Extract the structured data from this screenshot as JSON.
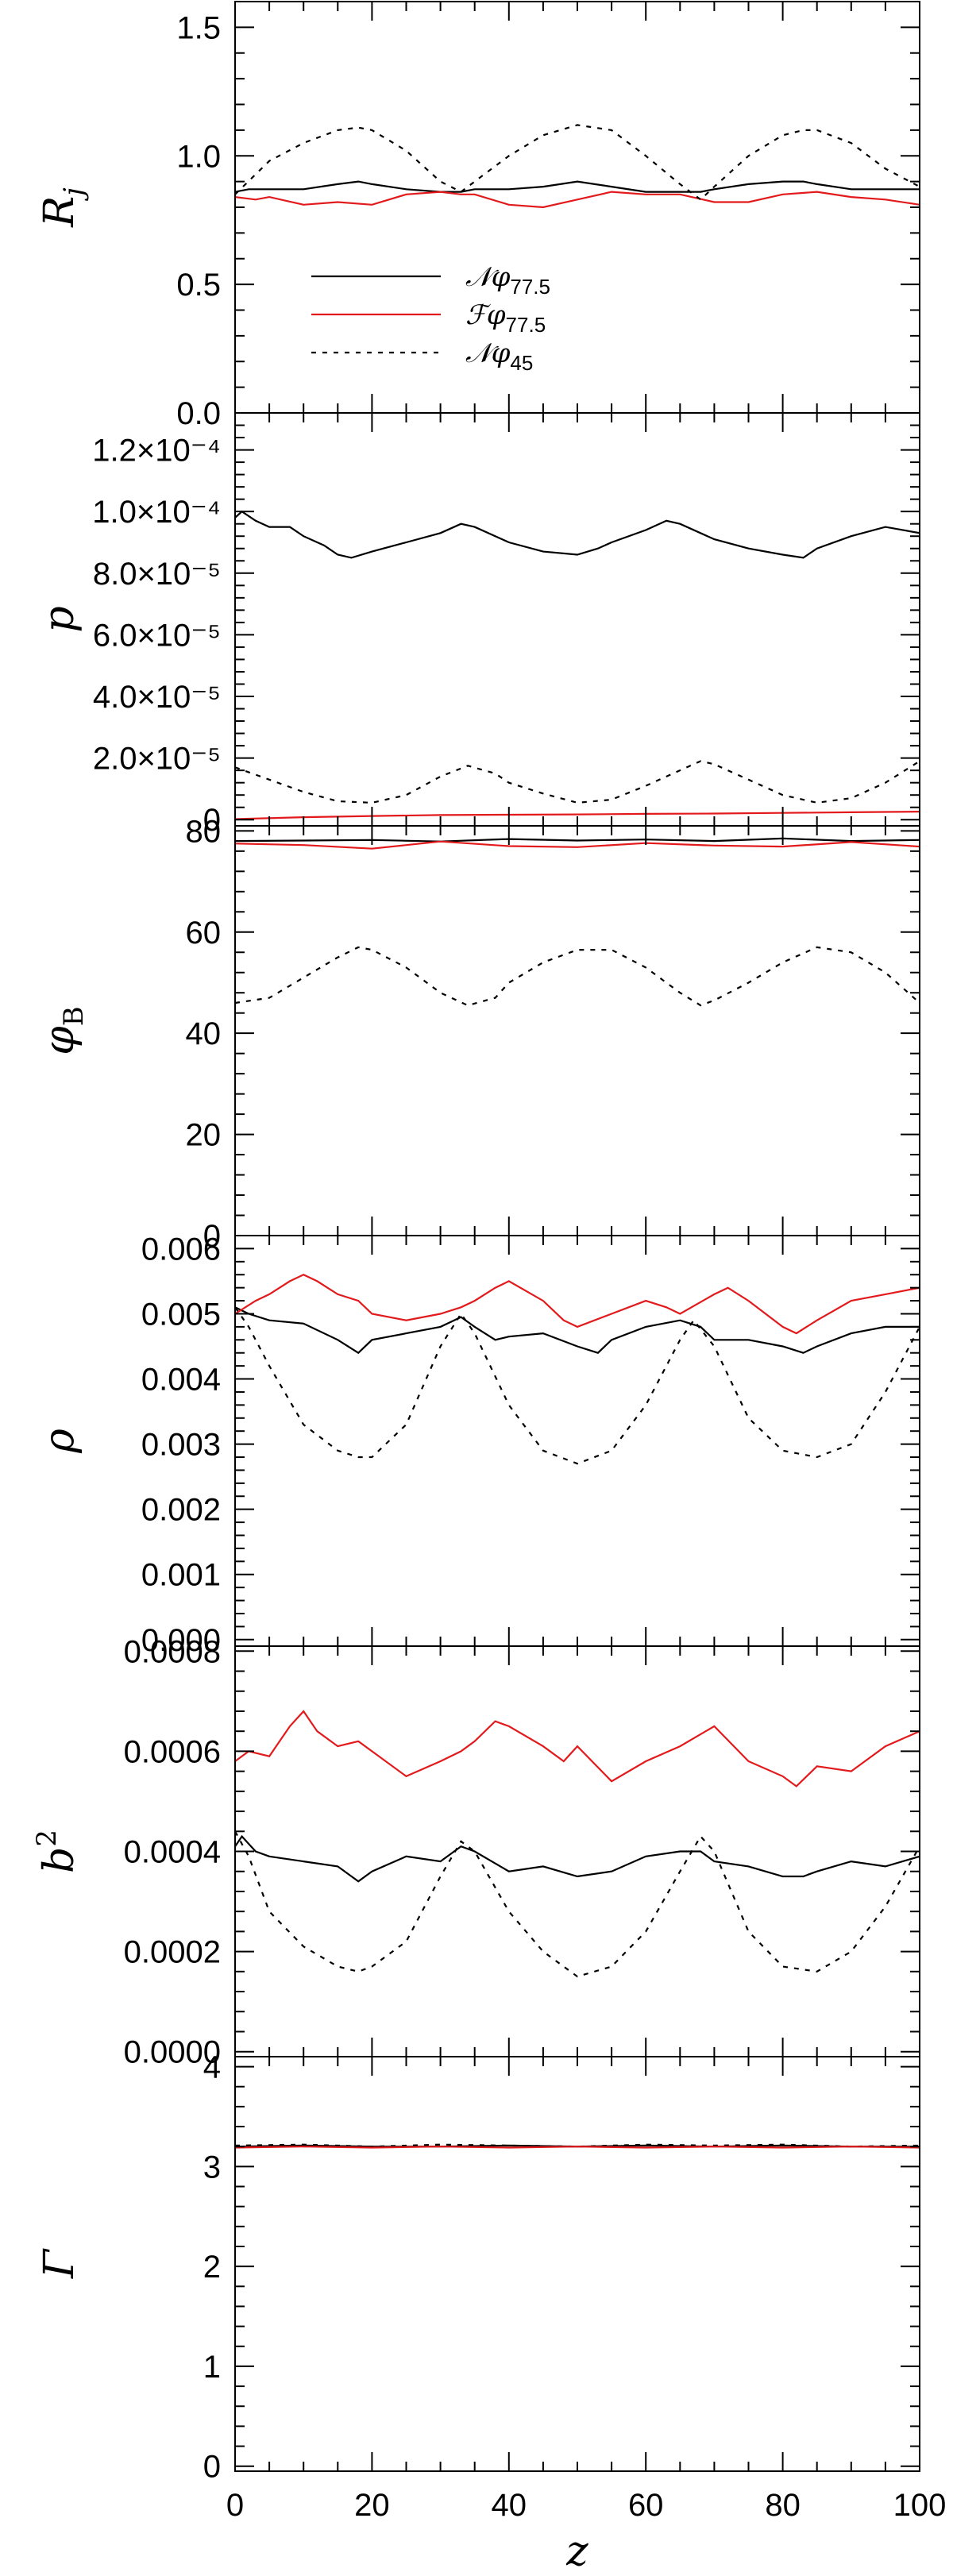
{
  "chart_data": [
    {
      "type": "line",
      "panel": "Rj",
      "ylabel": "R",
      "ylabel_sub": "j",
      "xlim": [
        0,
        100
      ],
      "ylim": [
        0,
        1.6
      ],
      "yticks": [
        0.0,
        0.5,
        1.0,
        1.5
      ],
      "ytick_labels": [
        "0.0",
        "0.5",
        "1.0",
        "1.5"
      ],
      "legend": {
        "placement": "lower-left",
        "entries": [
          {
            "text": "𝒩φ",
            "sub": "77.5",
            "color": "#000000",
            "dash": "solid"
          },
          {
            "text": "ℱφ",
            "sub": "77.5",
            "color": "#e31a1c",
            "dash": "solid"
          },
          {
            "text": "𝒩φ",
            "sub": "45",
            "color": "#000000",
            "dash": "dotted"
          }
        ]
      },
      "series": [
        {
          "color": "#000000",
          "dash": "solid",
          "x": [
            0,
            2,
            5,
            10,
            15,
            18,
            20,
            25,
            30,
            33,
            35,
            40,
            45,
            50,
            55,
            60,
            65,
            68,
            70,
            75,
            80,
            83,
            85,
            90,
            95,
            100
          ],
          "y": [
            0.86,
            0.87,
            0.87,
            0.87,
            0.89,
            0.9,
            0.89,
            0.87,
            0.86,
            0.86,
            0.87,
            0.87,
            0.88,
            0.9,
            0.88,
            0.86,
            0.86,
            0.86,
            0.87,
            0.89,
            0.9,
            0.9,
            0.89,
            0.87,
            0.87,
            0.87
          ]
        },
        {
          "color": "#e31a1c",
          "dash": "solid",
          "x": [
            0,
            3,
            5,
            10,
            15,
            20,
            25,
            30,
            33,
            35,
            40,
            45,
            50,
            55,
            60,
            65,
            70,
            75,
            80,
            85,
            90,
            95,
            100
          ],
          "y": [
            0.84,
            0.83,
            0.84,
            0.81,
            0.82,
            0.81,
            0.85,
            0.86,
            0.85,
            0.85,
            0.81,
            0.8,
            0.83,
            0.86,
            0.85,
            0.85,
            0.82,
            0.82,
            0.85,
            0.86,
            0.84,
            0.83,
            0.81
          ]
        },
        {
          "color": "#000000",
          "dash": "dotted",
          "x": [
            0,
            5,
            10,
            15,
            18,
            20,
            25,
            30,
            33,
            35,
            40,
            45,
            50,
            55,
            60,
            65,
            68,
            70,
            75,
            80,
            83,
            85,
            90,
            95,
            100
          ],
          "y": [
            0.85,
            0.98,
            1.05,
            1.1,
            1.11,
            1.1,
            1.02,
            0.9,
            0.86,
            0.9,
            1.0,
            1.08,
            1.12,
            1.1,
            1.0,
            0.89,
            0.83,
            0.88,
            1.0,
            1.08,
            1.1,
            1.1,
            1.05,
            0.95,
            0.88
          ]
        }
      ]
    },
    {
      "type": "line",
      "panel": "p",
      "ylabel": "p",
      "xlim": [
        0,
        100
      ],
      "ylim": [
        -2e-06,
        0.000132
      ],
      "yticks": [
        0,
        2e-05,
        4e-05,
        6e-05,
        8e-05,
        0.0001,
        0.00012
      ],
      "ytick_labels": [
        "0",
        "2.0×10⁻⁵",
        "4.0×10⁻⁵",
        "6.0×10⁻⁵",
        "8.0×10⁻⁵",
        "1.0×10⁻⁴",
        "1.2×10⁻⁴"
      ],
      "series": [
        {
          "color": "#000000",
          "dash": "solid",
          "x": [
            0,
            1,
            3,
            5,
            8,
            10,
            13,
            15,
            17,
            20,
            25,
            30,
            33,
            35,
            40,
            45,
            50,
            53,
            55,
            60,
            63,
            65,
            70,
            75,
            80,
            83,
            85,
            90,
            95,
            100
          ],
          "y": [
            9.8e-05,
            0.0001,
            9.7e-05,
            9.5e-05,
            9.5e-05,
            9.2e-05,
            8.9e-05,
            8.6e-05,
            8.5e-05,
            8.7e-05,
            9e-05,
            9.3e-05,
            9.6e-05,
            9.5e-05,
            9e-05,
            8.7e-05,
            8.6e-05,
            8.8e-05,
            9e-05,
            9.4e-05,
            9.7e-05,
            9.6e-05,
            9.1e-05,
            8.8e-05,
            8.6e-05,
            8.5e-05,
            8.8e-05,
            9.2e-05,
            9.5e-05,
            9.3e-05
          ]
        },
        {
          "color": "#e31a1c",
          "dash": "solid",
          "x": [
            0,
            10,
            20,
            30,
            40,
            50,
            60,
            70,
            80,
            90,
            100
          ],
          "y": [
            2e-07,
            8e-07,
            1.2e-06,
            1.5e-06,
            1.6e-06,
            1.7e-06,
            1.9e-06,
            2e-06,
            2.2e-06,
            2.4e-06,
            2.6e-06
          ]
        },
        {
          "color": "#000000",
          "dash": "dotted",
          "x": [
            0,
            5,
            10,
            15,
            20,
            25,
            30,
            34,
            38,
            40,
            45,
            50,
            55,
            60,
            65,
            68,
            70,
            75,
            80,
            85,
            90,
            95,
            100
          ],
          "y": [
            1.7e-05,
            1.3e-05,
            9e-06,
            6e-06,
            5.5e-06,
            8e-06,
            1.4e-05,
            1.75e-05,
            1.5e-05,
            1.2e-05,
            8.5e-06,
            5.5e-06,
            6.5e-06,
            1.1e-05,
            1.6e-05,
            1.9e-05,
            1.8e-05,
            1.3e-05,
            8e-06,
            5.5e-06,
            7e-06,
            1.2e-05,
            1.9e-05
          ]
        }
      ]
    },
    {
      "type": "line",
      "panel": "phiB",
      "ylabel": "φ",
      "ylabel_sub": "B",
      "xlim": [
        0,
        100
      ],
      "ylim": [
        0,
        81
      ],
      "yticks": [
        0,
        20,
        40,
        60,
        80
      ],
      "ytick_labels": [
        "0",
        "20",
        "40",
        "60",
        "80"
      ],
      "series": [
        {
          "color": "#000000",
          "dash": "solid",
          "x": [
            0,
            10,
            20,
            30,
            40,
            50,
            60,
            70,
            80,
            90,
            100
          ],
          "y": [
            78.0,
            78.1,
            78.2,
            77.9,
            78.4,
            78.1,
            78.3,
            78.0,
            78.5,
            78.0,
            78.2
          ]
        },
        {
          "color": "#e31a1c",
          "dash": "solid",
          "x": [
            0,
            10,
            20,
            30,
            40,
            50,
            60,
            70,
            80,
            90,
            100
          ],
          "y": [
            77.5,
            77.2,
            76.5,
            77.9,
            77.0,
            76.8,
            77.6,
            77.1,
            76.9,
            77.8,
            76.9
          ]
        },
        {
          "color": "#000000",
          "dash": "dotted",
          "x": [
            0,
            5,
            10,
            15,
            18,
            20,
            25,
            30,
            34,
            38,
            40,
            45,
            50,
            55,
            60,
            65,
            68,
            70,
            75,
            80,
            85,
            90,
            95,
            100
          ],
          "y": [
            46,
            47,
            51,
            55,
            57,
            56.5,
            53,
            48,
            45.5,
            47,
            50,
            54,
            56.5,
            56.5,
            53,
            48,
            45.5,
            46.5,
            50,
            54,
            57,
            56,
            52,
            46
          ]
        }
      ]
    },
    {
      "type": "line",
      "panel": "rho",
      "ylabel": "ρ",
      "xlim": [
        0,
        100
      ],
      "ylim": [
        -0.0001,
        0.0062
      ],
      "yticks": [
        0,
        0.001,
        0.002,
        0.003,
        0.004,
        0.005,
        0.006
      ],
      "ytick_labels": [
        "0.000",
        "0.001",
        "0.002",
        "0.003",
        "0.004",
        "0.005",
        "0.006"
      ],
      "series": [
        {
          "color": "#000000",
          "dash": "solid",
          "x": [
            0,
            2,
            5,
            10,
            15,
            18,
            20,
            25,
            30,
            33,
            35,
            38,
            40,
            45,
            50,
            53,
            55,
            60,
            65,
            68,
            70,
            75,
            80,
            83,
            85,
            90,
            95,
            100
          ],
          "y": [
            0.0051,
            0.005,
            0.0049,
            0.00485,
            0.0046,
            0.0044,
            0.0046,
            0.0047,
            0.0048,
            0.00495,
            0.0048,
            0.0046,
            0.00465,
            0.0047,
            0.0045,
            0.0044,
            0.0046,
            0.0048,
            0.0049,
            0.0048,
            0.0046,
            0.0046,
            0.0045,
            0.0044,
            0.0045,
            0.0047,
            0.0048,
            0.0048
          ]
        },
        {
          "color": "#e31a1c",
          "dash": "solid",
          "x": [
            0,
            3,
            5,
            8,
            10,
            12,
            15,
            18,
            20,
            25,
            30,
            33,
            35,
            38,
            40,
            45,
            48,
            50,
            55,
            60,
            63,
            65,
            70,
            72,
            75,
            80,
            82,
            85,
            90,
            95,
            100
          ],
          "y": [
            0.005,
            0.0052,
            0.0053,
            0.0055,
            0.0056,
            0.0055,
            0.0053,
            0.0052,
            0.005,
            0.0049,
            0.005,
            0.0051,
            0.0052,
            0.0054,
            0.0055,
            0.0052,
            0.0049,
            0.0048,
            0.005,
            0.0052,
            0.0051,
            0.005,
            0.0053,
            0.0054,
            0.0052,
            0.0048,
            0.0047,
            0.0049,
            0.0052,
            0.0053,
            0.0054
          ]
        },
        {
          "color": "#000000",
          "dash": "dotted",
          "x": [
            0,
            2,
            5,
            10,
            15,
            18,
            20,
            25,
            30,
            33,
            35,
            40,
            45,
            50,
            55,
            60,
            65,
            67,
            70,
            75,
            80,
            85,
            90,
            95,
            100
          ],
          "y": [
            0.0051,
            0.0048,
            0.0042,
            0.0033,
            0.0029,
            0.0028,
            0.0028,
            0.0033,
            0.0045,
            0.005,
            0.0047,
            0.0036,
            0.0029,
            0.0027,
            0.0029,
            0.0036,
            0.0046,
            0.0049,
            0.0045,
            0.0034,
            0.0029,
            0.0028,
            0.003,
            0.0038,
            0.0048
          ]
        }
      ]
    },
    {
      "type": "line",
      "panel": "b2",
      "ylabel": "b",
      "ylabel_sup": "2",
      "xlim": [
        0,
        100
      ],
      "ylim": [
        -1e-05,
        0.00081
      ],
      "yticks": [
        0,
        0.0002,
        0.0004,
        0.0006,
        0.0008
      ],
      "ytick_labels": [
        "0.0000",
        "0.0002",
        "0.0004",
        "0.0006",
        "0.0008"
      ],
      "series": [
        {
          "color": "#000000",
          "dash": "solid",
          "x": [
            0,
            1,
            3,
            5,
            10,
            15,
            18,
            20,
            25,
            30,
            33,
            35,
            40,
            45,
            50,
            55,
            60,
            65,
            68,
            70,
            75,
            80,
            83,
            85,
            90,
            95,
            100
          ],
          "y": [
            0.00041,
            0.00043,
            0.0004,
            0.00039,
            0.00038,
            0.00037,
            0.00034,
            0.00036,
            0.00039,
            0.00038,
            0.00041,
            0.0004,
            0.00036,
            0.00037,
            0.00035,
            0.00036,
            0.00039,
            0.0004,
            0.0004,
            0.00038,
            0.00037,
            0.00035,
            0.00035,
            0.00036,
            0.00038,
            0.00037,
            0.00039
          ]
        },
        {
          "color": "#e31a1c",
          "dash": "solid",
          "x": [
            0,
            2,
            5,
            8,
            10,
            12,
            15,
            18,
            20,
            25,
            30,
            33,
            35,
            38,
            40,
            45,
            48,
            50,
            55,
            60,
            65,
            70,
            75,
            80,
            82,
            85,
            90,
            95,
            100
          ],
          "y": [
            0.00058,
            0.0006,
            0.00059,
            0.00065,
            0.00068,
            0.00064,
            0.00061,
            0.00062,
            0.0006,
            0.00055,
            0.00058,
            0.0006,
            0.00062,
            0.00066,
            0.00065,
            0.00061,
            0.00058,
            0.00061,
            0.00054,
            0.00058,
            0.00061,
            0.00065,
            0.00058,
            0.00055,
            0.00053,
            0.00057,
            0.00056,
            0.00061,
            0.00064
          ]
        },
        {
          "color": "#000000",
          "dash": "dotted",
          "x": [
            0,
            2,
            5,
            10,
            15,
            18,
            20,
            25,
            30,
            33,
            35,
            40,
            45,
            50,
            55,
            60,
            65,
            68,
            70,
            75,
            80,
            85,
            90,
            95,
            100
          ],
          "y": [
            0.00044,
            0.00039,
            0.00028,
            0.00021,
            0.00017,
            0.00016,
            0.00017,
            0.00022,
            0.00035,
            0.00042,
            0.0004,
            0.00028,
            0.0002,
            0.00015,
            0.00017,
            0.00024,
            0.00036,
            0.00043,
            0.0004,
            0.00024,
            0.00017,
            0.00016,
            0.0002,
            0.00029,
            0.00041
          ]
        }
      ]
    },
    {
      "type": "line",
      "panel": "Gamma",
      "ylabel": "Γ",
      "xlabel": "z",
      "xlim": [
        0,
        100
      ],
      "xticks": [
        0,
        20,
        40,
        60,
        80,
        100
      ],
      "xtick_labels": [
        "0",
        "20",
        "40",
        "60",
        "80",
        "100"
      ],
      "ylim": [
        -0.05,
        4.1
      ],
      "yticks": [
        0,
        1,
        2,
        3,
        4
      ],
      "ytick_labels": [
        "0",
        "1",
        "2",
        "3",
        "4"
      ],
      "series": [
        {
          "color": "#000000",
          "dash": "dotted",
          "x": [
            0,
            10,
            20,
            30,
            40,
            50,
            60,
            70,
            80,
            90,
            100
          ],
          "y": [
            3.21,
            3.22,
            3.2,
            3.22,
            3.21,
            3.2,
            3.22,
            3.21,
            3.22,
            3.2,
            3.21
          ]
        },
        {
          "color": "#000000",
          "dash": "solid",
          "x": [
            0,
            10,
            20,
            30,
            40,
            50,
            60,
            70,
            80,
            90,
            100
          ],
          "y": [
            3.2,
            3.21,
            3.2,
            3.2,
            3.21,
            3.2,
            3.21,
            3.2,
            3.21,
            3.2,
            3.2
          ]
        },
        {
          "color": "#e31a1c",
          "dash": "solid",
          "x": [
            0,
            10,
            20,
            30,
            40,
            50,
            60,
            70,
            80,
            90,
            100
          ],
          "y": [
            3.19,
            3.2,
            3.19,
            3.2,
            3.19,
            3.2,
            3.19,
            3.2,
            3.19,
            3.2,
            3.19
          ]
        }
      ]
    }
  ]
}
